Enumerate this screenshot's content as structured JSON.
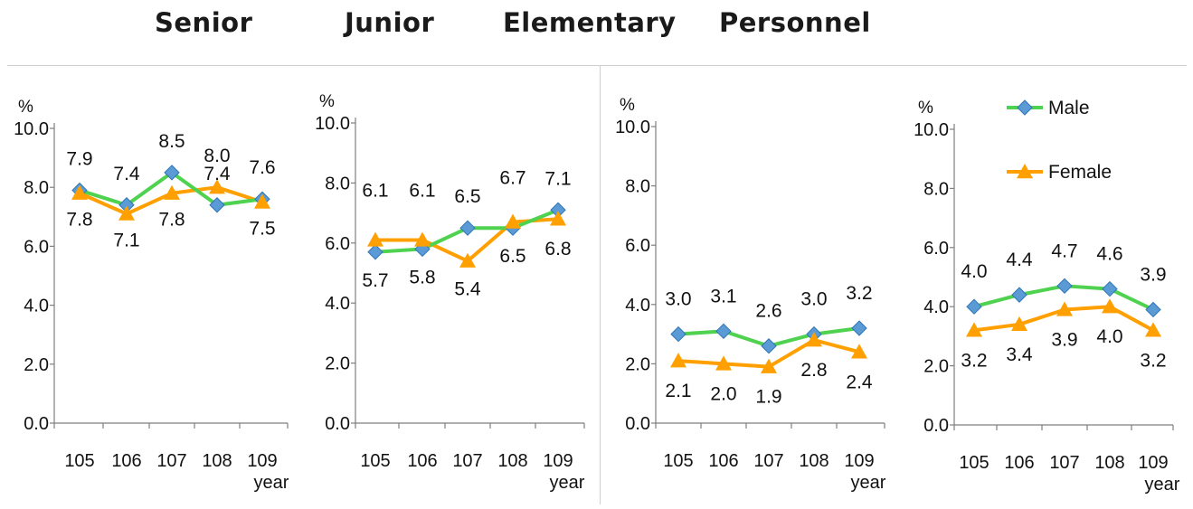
{
  "titles": [
    "Senior",
    "Junior",
    "Elementary",
    "Personnel"
  ],
  "legend": {
    "male": "Male",
    "female": "Female"
  },
  "colors": {
    "male_line": "#4fd24f",
    "male_marker": "#5b9bd5",
    "female_line": "#ffa000",
    "female_marker": "#ffa000",
    "axis": "#7f7f7f"
  },
  "chart_data": [
    {
      "type": "line",
      "title": "Senior",
      "ylabel": "%",
      "xlabel": "year",
      "categories": [
        "105",
        "106",
        "107",
        "108",
        "109"
      ],
      "yticks": [
        "0.0",
        "2.0",
        "4.0",
        "6.0",
        "8.0",
        "10.0"
      ],
      "ylim": [
        0,
        10
      ],
      "grid": false,
      "series": [
        {
          "name": "Male",
          "values": [
            7.9,
            7.4,
            8.5,
            7.4,
            7.6
          ],
          "labels": [
            "7.9",
            "7.4",
            "8.5",
            "7.4",
            "7.6"
          ]
        },
        {
          "name": "Female",
          "values": [
            7.8,
            7.1,
            7.8,
            8.0,
            7.5
          ],
          "labels": [
            "7.8",
            "7.1",
            "7.8",
            "8.0",
            "7.5"
          ]
        }
      ]
    },
    {
      "type": "line",
      "title": "Junior",
      "ylabel": "%",
      "xlabel": "year",
      "categories": [
        "105",
        "106",
        "107",
        "108",
        "109"
      ],
      "yticks": [
        "0.0",
        "2.0",
        "4.0",
        "6.0",
        "8.0",
        "10.0"
      ],
      "ylim": [
        0,
        10
      ],
      "grid": false,
      "series": [
        {
          "name": "Male",
          "values": [
            5.7,
            5.8,
            6.5,
            6.5,
            7.1
          ],
          "labels": [
            "5.7",
            "5.8",
            "6.5",
            "6.5",
            "7.1"
          ]
        },
        {
          "name": "Female",
          "values": [
            6.1,
            6.1,
            5.4,
            6.7,
            6.8
          ],
          "labels": [
            "6.1",
            "6.1",
            "5.4",
            "6.7",
            "6.8"
          ]
        }
      ]
    },
    {
      "type": "line",
      "title": "Elementary",
      "ylabel": "%",
      "xlabel": "year",
      "categories": [
        "105",
        "106",
        "107",
        "108",
        "109"
      ],
      "yticks": [
        "0.0",
        "2.0",
        "4.0",
        "6.0",
        "8.0",
        "10.0"
      ],
      "ylim": [
        0,
        10
      ],
      "grid": false,
      "series": [
        {
          "name": "Male",
          "values": [
            3.0,
            3.1,
            2.6,
            3.0,
            3.2
          ],
          "labels": [
            "3.0",
            "3.1",
            "2.6",
            "3.0",
            "3.2"
          ]
        },
        {
          "name": "Female",
          "values": [
            2.1,
            2.0,
            1.9,
            2.8,
            2.4
          ],
          "labels": [
            "2.1",
            "2.0",
            "1.9",
            "2.8",
            "2.4"
          ]
        }
      ]
    },
    {
      "type": "line",
      "title": "Personnel",
      "ylabel": "%",
      "xlabel": "year",
      "categories": [
        "105",
        "106",
        "107",
        "108",
        "109"
      ],
      "yticks": [
        "0.0",
        "2.0",
        "4.0",
        "6.0",
        "8.0",
        "10.0"
      ],
      "ylim": [
        0,
        10
      ],
      "grid": false,
      "legend_position": "top-right",
      "series": [
        {
          "name": "Male",
          "values": [
            4.0,
            4.4,
            4.7,
            4.6,
            3.9
          ],
          "labels": [
            "4.0",
            "4.4",
            "4.7",
            "4.6",
            "3.9"
          ]
        },
        {
          "name": "Female",
          "values": [
            3.2,
            3.4,
            3.9,
            4.0,
            3.2
          ],
          "labels": [
            "3.2",
            "3.4",
            "3.9",
            "4.0",
            "3.2"
          ]
        }
      ]
    }
  ]
}
